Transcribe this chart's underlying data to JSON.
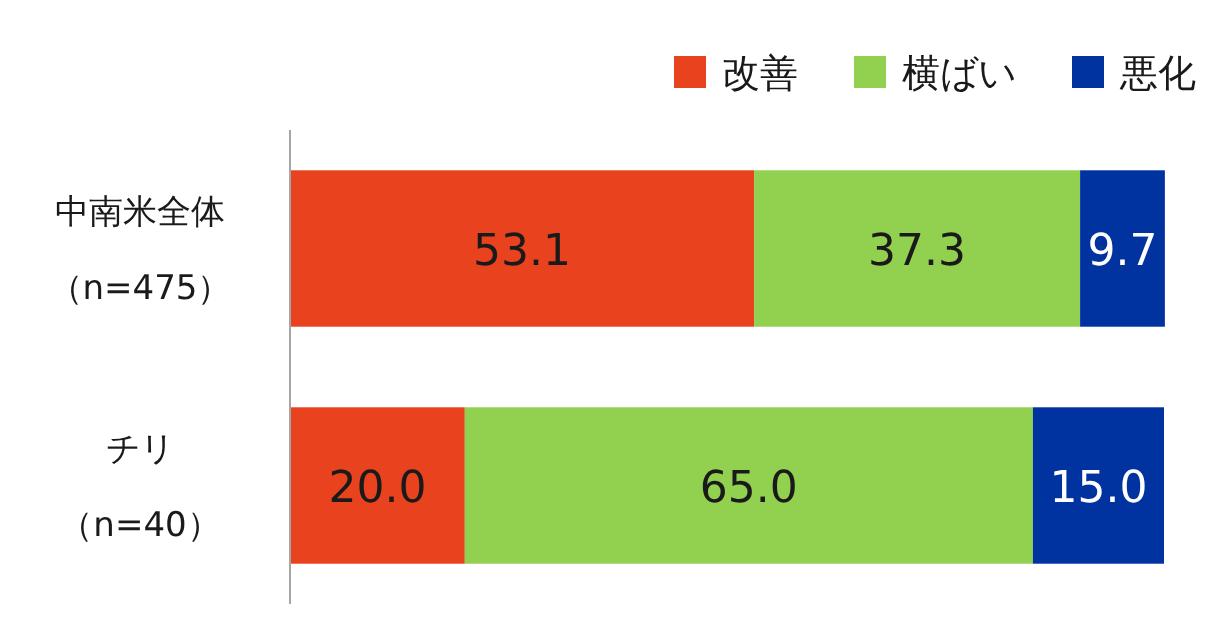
{
  "chart_data": {
    "type": "bar",
    "orientation": "horizontal",
    "stacked": true,
    "legend": "top right",
    "xlim": [
      0,
      100
    ],
    "categories": [
      "中南米全体（n=475）",
      "チリ（n=40）"
    ],
    "series": [
      {
        "name": "改善",
        "color": "#e8431e",
        "values": [
          53.1,
          20.0
        ],
        "value_labels": [
          "53.1",
          "20.0"
        ]
      },
      {
        "name": "横ばい",
        "color": "#92d050",
        "values": [
          37.3,
          65.0
        ],
        "value_labels": [
          "37.3",
          "65.0"
        ]
      },
      {
        "name": "悪化",
        "color": "#0033a0",
        "values": [
          9.7,
          15.0
        ],
        "value_labels": [
          "9.7",
          "15.0"
        ]
      }
    ]
  }
}
